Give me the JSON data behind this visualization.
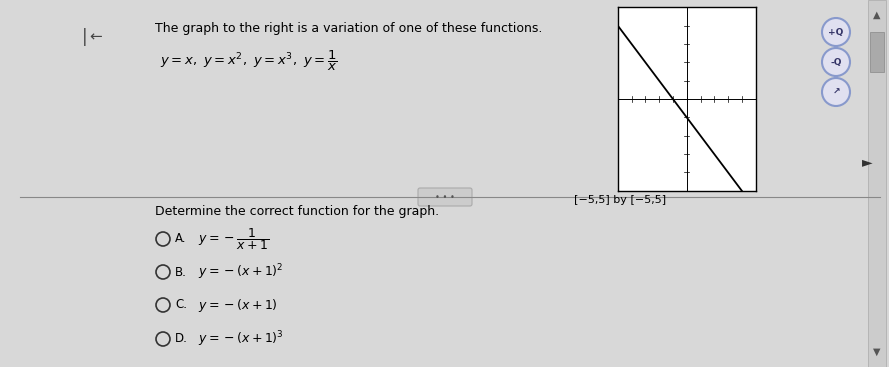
{
  "title_text": "The graph to the right is a variation of one of these functions.",
  "window": "[−5,5] by [−5,5]",
  "question": "Determine the correct function for the graph.",
  "bg_color": "#d8d8d8",
  "left_stripe_color": "#b8956a",
  "text_color": "#000000",
  "graph_bg": "#ffffff",
  "graph_xlim": [
    -5,
    5
  ],
  "graph_ylim": [
    -5,
    5
  ],
  "separator_color": "#888888",
  "radio_color": "#333333",
  "btn_face": "#e0e0f0",
  "btn_edge": "#8899cc"
}
